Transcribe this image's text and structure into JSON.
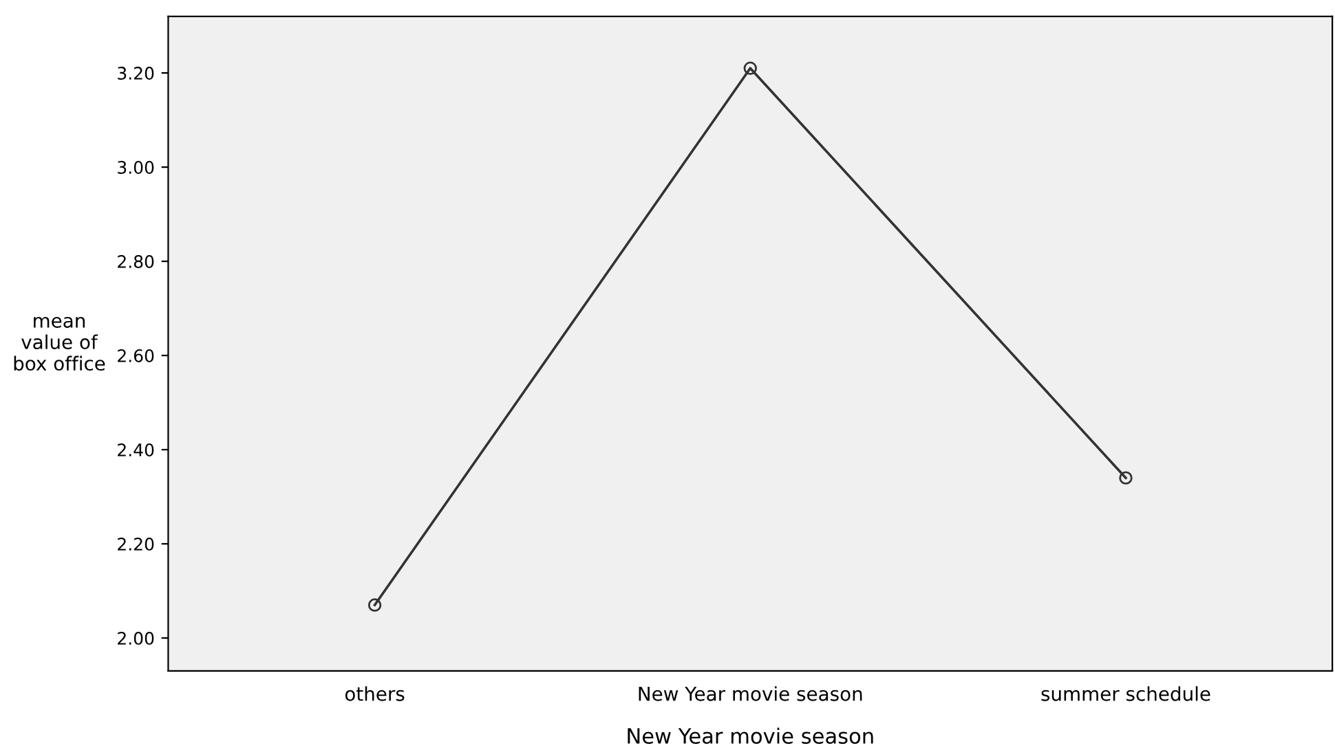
{
  "chart_data": {
    "type": "line",
    "xlabel": "New Year movie season",
    "ylabel": "mean\nvalue of\nbox office",
    "categories": [
      "others",
      "New Year movie season",
      "summer schedule"
    ],
    "series": [
      {
        "color": "#333333",
        "values": [
          2.07,
          3.21,
          2.34
        ]
      }
    ],
    "marker": "circle",
    "line_style": "solid",
    "grid": false,
    "legend": false,
    "ylim": [
      1.93,
      3.32
    ],
    "yticks": [
      {
        "value": 2.0,
        "label": "2.00"
      },
      {
        "value": 2.2,
        "label": "2.20"
      },
      {
        "value": 2.4,
        "label": "2.40"
      },
      {
        "value": 2.6,
        "label": "2.60"
      },
      {
        "value": 2.8,
        "label": "2.80"
      },
      {
        "value": 3.0,
        "label": "3.00"
      },
      {
        "value": 3.2,
        "label": "3.20"
      }
    ]
  }
}
